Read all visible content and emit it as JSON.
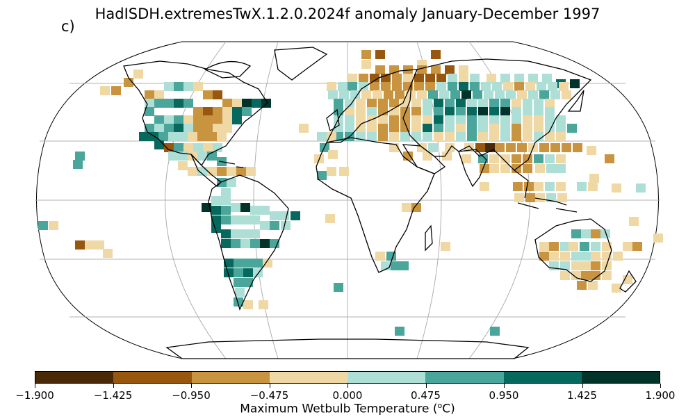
{
  "panel_label": "c)",
  "title": "HadISDH.extremesTwX.1.2.0.2024f anomaly January-December 1997",
  "colorbar": {
    "label": "Maximum Wetbulb Temperature (",
    "label_unit_sup": "o",
    "label_unit_end": "C)",
    "ticks": [
      "−1.900",
      "−1.425",
      "−0.950",
      "−0.475",
      "0.000",
      "0.475",
      "0.950",
      "1.425",
      "1.900"
    ],
    "colors": [
      "#4a2a06",
      "#98570f",
      "#c9943f",
      "#efd8a4",
      "#aedfd7",
      "#4aa59a",
      "#07695d",
      "#02332b"
    ]
  },
  "map": {
    "projection": "robinson",
    "land_color": "#ffffff",
    "coast_color": "#000000",
    "grid_color": "#b0b0b0"
  }
}
